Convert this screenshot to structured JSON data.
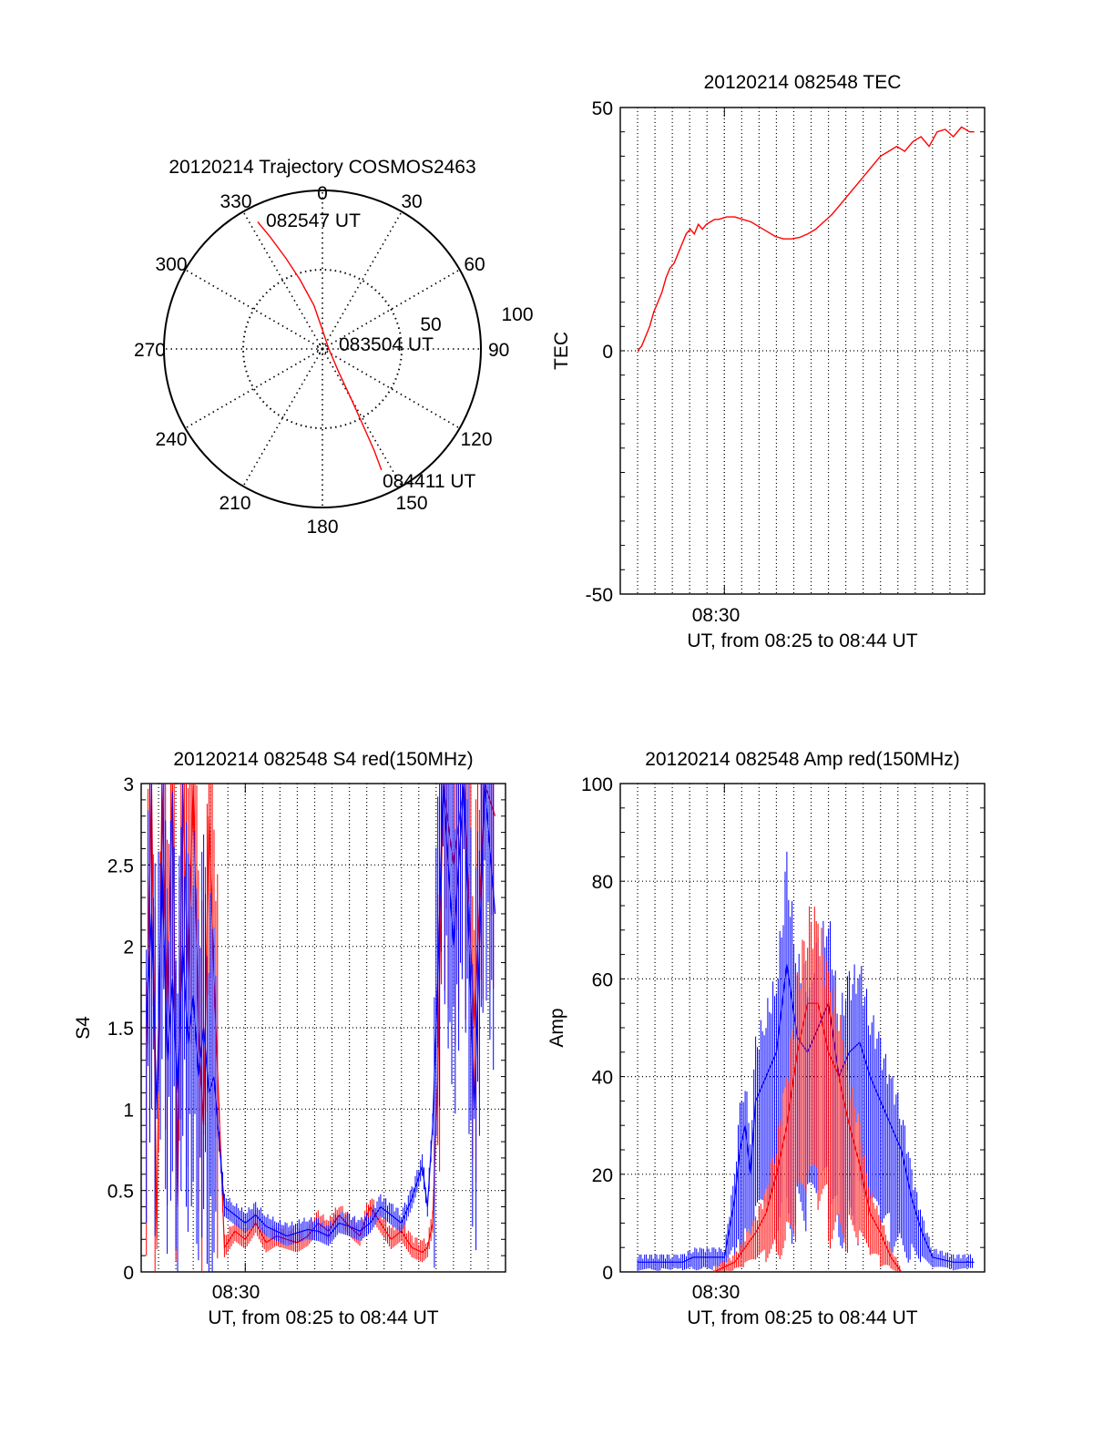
{
  "colors": {
    "red": "#ff0000",
    "blue": "#0000ff",
    "axis": "#000000",
    "grid": "#000000"
  },
  "polar": {
    "title": "20120214 Trajectory COSMOS2463",
    "azimuth_labels": [
      "0",
      "30",
      "60",
      "90",
      "120",
      "150",
      "180",
      "210",
      "240",
      "270",
      "300",
      "330"
    ],
    "ring_labels": [
      "50",
      "100"
    ],
    "radius_max": 100,
    "grid": "dotted",
    "chart_data": {
      "type": "scatter",
      "coordinate_system": "polar (azimuth deg, zenith distance)",
      "series": [
        {
          "color": "red",
          "points": [
            {
              "az": 333,
              "r": 90
            },
            {
              "az": 335,
              "r": 78
            },
            {
              "az": 338,
              "r": 62
            },
            {
              "az": 342,
              "r": 46
            },
            {
              "az": 349,
              "r": 28
            },
            {
              "az": 0,
              "r": 12
            },
            {
              "az": 90,
              "r": 4
            },
            {
              "az": 145,
              "r": 18
            },
            {
              "az": 150,
              "r": 36
            },
            {
              "az": 152,
              "r": 55
            },
            {
              "az": 153,
              "r": 72
            },
            {
              "az": 154,
              "r": 85
            }
          ]
        }
      ],
      "annotations": [
        {
          "text": "082547 UT",
          "az": 334,
          "r": 92
        },
        {
          "text": "083504 UT",
          "az": 75,
          "r": 12
        },
        {
          "text": "084411 UT",
          "az": 144,
          "r": 100
        }
      ]
    }
  },
  "tec": {
    "title": "20120214 082548 TEC",
    "ylabel": "TEC",
    "xlabel": "UT, from 08:25 to 08:44 UT",
    "xtick_label": "08:30",
    "yticks": [
      "-50",
      "0",
      "50"
    ],
    "chart_data": {
      "type": "line",
      "xlim": [
        8.4,
        8.75
      ],
      "ylim": [
        -50,
        50
      ],
      "series": [
        {
          "color": "red",
          "x": [
            8.4167,
            8.4206,
            8.4244,
            8.4283,
            8.4322,
            8.4361,
            8.44,
            8.4439,
            8.4478,
            8.4517,
            8.4556,
            8.4594,
            8.4633,
            8.4672,
            8.4711,
            8.475,
            8.4789,
            8.4828,
            8.4867,
            8.4906,
            8.4944,
            8.5022,
            8.51,
            8.5178,
            8.5256,
            8.5333,
            8.5411,
            8.5489,
            8.5567,
            8.5644,
            8.5722,
            8.58,
            8.5878,
            8.5956,
            8.6033,
            8.6111,
            8.6189,
            8.6267,
            8.6344,
            8.6422,
            8.65,
            8.6578,
            8.6656,
            8.6733,
            8.6811,
            8.6889,
            8.6967,
            8.7044,
            8.7122,
            8.72,
            8.7278,
            8.7356,
            8.74
          ],
          "y": [
            0,
            1,
            3,
            5,
            8,
            10,
            12,
            15,
            17,
            18,
            20,
            22,
            24,
            25,
            24,
            26,
            25,
            26,
            26.5,
            27,
            27,
            27.5,
            27.5,
            27,
            26.5,
            25.5,
            24.5,
            23.5,
            23,
            23,
            23.3,
            24,
            25,
            26.5,
            28,
            30,
            32,
            34,
            36,
            38,
            40,
            41,
            42,
            41,
            43,
            44,
            42,
            45,
            45.5,
            44,
            46,
            45,
            45
          ]
        }
      ]
    }
  },
  "s4": {
    "title": "20120214 082548 S4 red(150MHz)",
    "ylabel": "S4",
    "xlabel": "UT, from 08:25 to 08:44 UT",
    "xtick_label": "08:30",
    "yticks": [
      "0",
      "0.5",
      "1",
      "1.5",
      "2",
      "2.5",
      "3"
    ],
    "chart_data": {
      "type": "line",
      "xlim": [
        8.4,
        8.75
      ],
      "ylim": [
        0,
        3
      ],
      "series": [
        {
          "color": "red",
          "x": [
            8.405,
            8.41,
            8.415,
            8.42,
            8.425,
            8.43,
            8.435,
            8.44,
            8.445,
            8.45,
            8.455,
            8.46,
            8.465,
            8.47,
            8.48,
            8.49,
            8.5,
            8.51,
            8.52,
            8.53,
            8.54,
            8.55,
            8.56,
            8.57,
            8.58,
            8.59,
            8.6,
            8.61,
            8.62,
            8.63,
            8.64,
            8.65,
            8.66,
            8.67,
            8.675,
            8.68,
            8.685,
            8.69,
            8.7,
            8.71,
            8.72,
            8.73,
            8.74
          ],
          "y": [
            1.3,
            3.0,
            0.2,
            3.0,
            1.6,
            3.0,
            0.4,
            3.0,
            1.8,
            3.0,
            1.5,
            0.9,
            2.8,
            1.8,
            0.15,
            0.25,
            0.2,
            0.3,
            0.18,
            0.22,
            0.2,
            0.18,
            0.22,
            0.3,
            0.25,
            0.35,
            0.28,
            0.22,
            0.4,
            0.3,
            0.2,
            0.25,
            0.15,
            0.12,
            0.15,
            0.3,
            1.2,
            3.0,
            2.5,
            3.0,
            1.5,
            3.0,
            2.8
          ]
        },
        {
          "color": "blue",
          "x": [
            8.405,
            8.41,
            8.415,
            8.42,
            8.425,
            8.43,
            8.435,
            8.44,
            8.445,
            8.45,
            8.455,
            8.46,
            8.465,
            8.47,
            8.48,
            8.49,
            8.5,
            8.51,
            8.52,
            8.53,
            8.54,
            8.55,
            8.56,
            8.57,
            8.58,
            8.59,
            8.6,
            8.61,
            8.62,
            8.63,
            8.64,
            8.65,
            8.66,
            8.67,
            8.675,
            8.68,
            8.685,
            8.69,
            8.7,
            8.71,
            8.72,
            8.73,
            8.74
          ],
          "y": [
            1.5,
            2.2,
            1.0,
            2.5,
            1.3,
            1.8,
            1.1,
            2.0,
            1.4,
            1.7,
            1.2,
            1.5,
            1.1,
            1.2,
            0.4,
            0.35,
            0.3,
            0.35,
            0.28,
            0.25,
            0.22,
            0.24,
            0.26,
            0.25,
            0.22,
            0.3,
            0.28,
            0.25,
            0.3,
            0.4,
            0.35,
            0.3,
            0.45,
            0.65,
            0.4,
            0.9,
            1.8,
            3.0,
            2.0,
            3.0,
            1.0,
            3.0,
            2.2
          ]
        }
      ]
    }
  },
  "amp": {
    "title": "20120214 082548 Amp red(150MHz)",
    "ylabel": "Amp",
    "xlabel": "UT, from 08:25 to 08:44 UT",
    "xtick_label": "08:30",
    "yticks": [
      "0",
      "20",
      "40",
      "60",
      "80",
      "100"
    ],
    "chart_data": {
      "type": "area",
      "xlim": [
        8.4,
        8.75
      ],
      "ylim": [
        0,
        100
      ],
      "series": [
        {
          "color": "blue",
          "x": [
            8.4167,
            8.43,
            8.44,
            8.45,
            8.455,
            8.46,
            8.47,
            8.48,
            8.49,
            8.5,
            8.51,
            8.515,
            8.52,
            8.525,
            8.53,
            8.54,
            8.55,
            8.56,
            8.57,
            8.58,
            8.59,
            8.6,
            8.61,
            8.62,
            8.63,
            8.64,
            8.65,
            8.66,
            8.67,
            8.68,
            8.69,
            8.7,
            8.72,
            8.74
          ],
          "y": [
            2,
            2,
            2,
            2,
            2,
            2,
            3,
            3,
            3,
            3,
            15,
            25,
            30,
            20,
            35,
            40,
            45,
            63,
            48,
            45,
            50,
            55,
            40,
            45,
            47,
            40,
            35,
            30,
            25,
            15,
            8,
            3,
            2,
            2
          ]
        },
        {
          "color": "red",
          "x": [
            8.49,
            8.5,
            8.51,
            8.52,
            8.53,
            8.54,
            8.55,
            8.56,
            8.57,
            8.58,
            8.59,
            8.6,
            8.61,
            8.62,
            8.63,
            8.64,
            8.65,
            8.66,
            8.67
          ],
          "y": [
            0,
            1,
            2,
            5,
            8,
            12,
            20,
            30,
            45,
            55,
            55,
            45,
            40,
            30,
            22,
            12,
            8,
            3,
            0
          ]
        }
      ]
    }
  }
}
